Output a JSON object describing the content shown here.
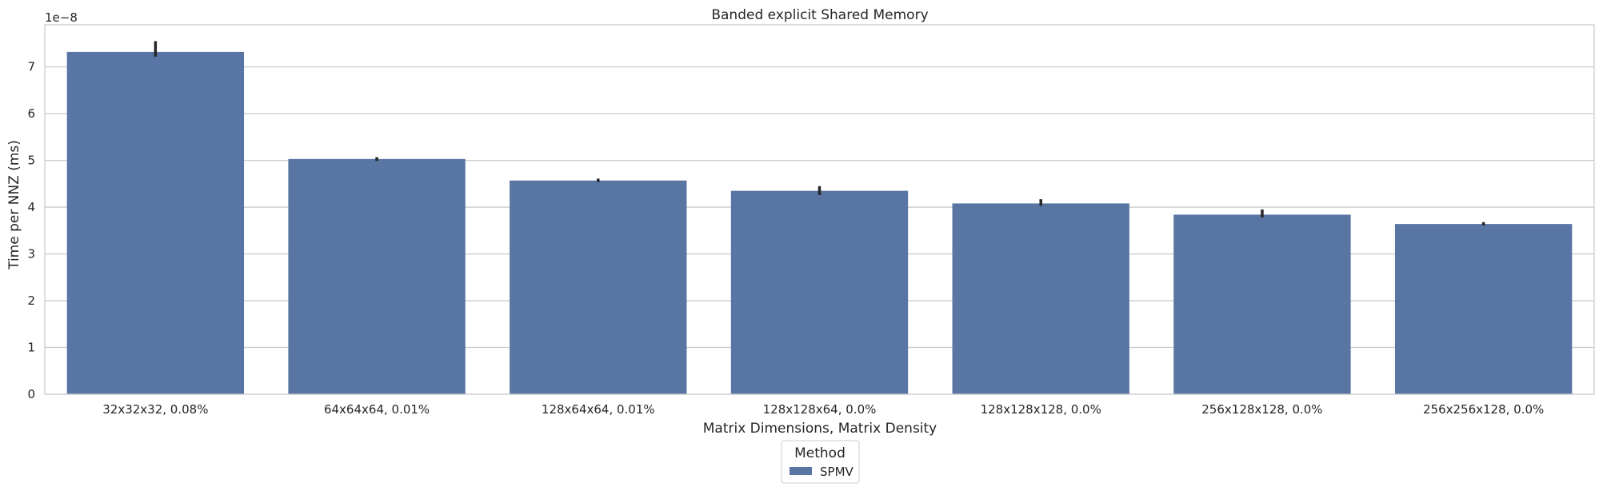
{
  "chart_data": {
    "type": "bar",
    "title": "Banded explicit Shared Memory",
    "xlabel": "Matrix Dimensions, Matrix Density",
    "ylabel": "Time per NNZ (ms)",
    "y_scale_label": "1e−8",
    "categories": [
      "32x32x32, 0.08%",
      "64x64x64, 0.01%",
      "128x64x64, 0.01%",
      "128x128x64, 0.0%",
      "128x128x128, 0.0%",
      "256x128x128, 0.0%",
      "256x256x128, 0.0%"
    ],
    "series": [
      {
        "name": "SPMV",
        "values": [
          7.32,
          5.03,
          4.57,
          4.35,
          4.08,
          3.84,
          3.64
        ],
        "error_low": [
          7.22,
          4.99,
          4.54,
          4.26,
          4.03,
          3.78,
          3.61
        ],
        "error_high": [
          7.55,
          5.07,
          4.61,
          4.45,
          4.17,
          3.95,
          3.68
        ]
      }
    ],
    "y_ticks": [
      0,
      1,
      2,
      3,
      4,
      5,
      6,
      7
    ],
    "ylim": [
      0,
      7.9
    ],
    "grid": true,
    "legend": {
      "title": "Method",
      "placement": "bottom-center"
    },
    "colors": {
      "bar": "#5975a4",
      "error_bar": "#262626",
      "grid": "#cccccc",
      "axes_edge": "#cccccc"
    }
  }
}
